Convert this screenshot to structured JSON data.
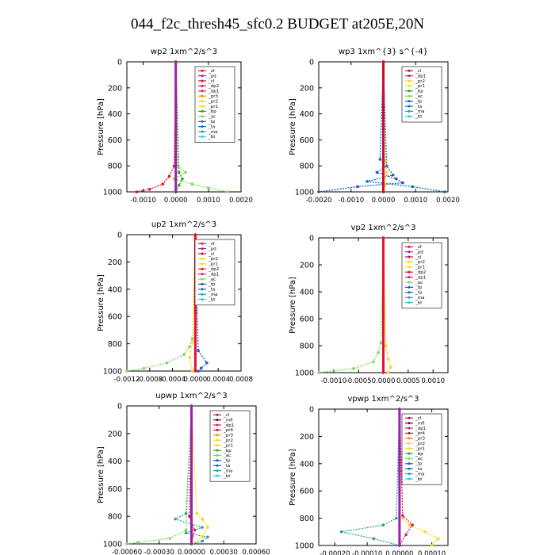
{
  "title": "044_f2c_thresh45_sfc0.2  BUDGET at205E,20N",
  "colors": {
    "sf": "#e8102a",
    "pd": "#9b1fa8",
    "cl": "#c8102e",
    "dp2": "#e8102a",
    "dp1": "#d81b60",
    "pr3": "#ff8c00",
    "pr2": "#ffd21a",
    "pr1": "#e6e600",
    "bp": "#2ca02c",
    "ac": "#7ed957",
    "tp": "#1f4fd8",
    "ta": "#0072b2",
    "ma": "#2aa198",
    "bt": "#22ccee",
    "mfl": "#5b0b2b",
    "pr4": "#b22222"
  },
  "chart_data": [
    {
      "type": "line",
      "title": "wp2  1xm^2/s^3",
      "ylabel": "Pressure  [hPa]",
      "ylim": [
        1000,
        0
      ],
      "xlim": [
        -0.0015,
        0.002
      ],
      "xticks": [
        -0.001,
        0.0,
        0.001,
        0.002
      ],
      "xtick_labels": [
        "-0.0010",
        "0.0000",
        "0.0010",
        "0.0020"
      ],
      "yticks": [
        0,
        200,
        400,
        600,
        800,
        1000
      ],
      "ytick_labels": [
        "0",
        "200",
        "400",
        "600",
        "800",
        "1000"
      ],
      "legend": [
        "_sf",
        "_pd",
        "_cl",
        "_dp2",
        "_dp1",
        "_pr3",
        "_pr2",
        "_pr1",
        "_bp",
        "_ac",
        "_tp",
        "_ta",
        "_ma",
        "_bt"
      ],
      "legend_placement": "top-right",
      "series": [
        {
          "name": "_ac",
          "color": "ac",
          "y": [
            0,
            800,
            850,
            900,
            940,
            970,
            1000
          ],
          "x": [
            0,
            5e-05,
            0.0003,
            -5e-05,
            0.0005,
            0.001,
            0.0016
          ]
        },
        {
          "name": "_dp2",
          "color": "dp2",
          "y": [
            0,
            800,
            880,
            940,
            980,
            1000
          ],
          "x": [
            0,
            -5e-05,
            -0.0002,
            -0.0004,
            -0.0008,
            -0.0012
          ]
        },
        {
          "name": "_bp",
          "color": "bp",
          "y": [
            0,
            850,
            900,
            950,
            1000
          ],
          "x": [
            0,
            0.0001,
            0.0002,
            0.0001,
            0.0
          ]
        },
        {
          "name": "_pd",
          "color": "pd",
          "y": [
            0,
            1000
          ],
          "x": [
            0,
            0
          ]
        }
      ]
    },
    {
      "type": "line",
      "title": "wp3  1xm^{3} s^{-4}",
      "ylabel": "Pressure  [hPa]",
      "ylim": [
        1000,
        0
      ],
      "xlim": [
        -0.002,
        0.002
      ],
      "xticks": [
        -0.002,
        -0.001,
        0.0,
        0.001,
        0.002
      ],
      "xtick_labels": [
        "-0.0020",
        "-0.0010",
        "0.0000",
        "0.0010",
        "0.0020"
      ],
      "yticks": [
        0,
        200,
        400,
        600,
        800,
        1000
      ],
      "ytick_labels": [
        "0",
        "200",
        "400",
        "600",
        "800",
        "1000"
      ],
      "legend": [
        "_cl",
        "_dp1",
        "_pr2",
        "_pr1",
        "_bp",
        "_ac",
        "_tp",
        "_ta",
        "_ma",
        "_bt"
      ],
      "legend_placement": "top-right",
      "series": [
        {
          "name": "_tp",
          "color": "tp",
          "y": [
            0,
            750,
            800,
            850,
            900,
            930,
            960,
            1000
          ],
          "x": [
            0,
            -0.0001,
            0.0001,
            -0.0002,
            0.0004,
            0.0006,
            -0.0008,
            -0.002
          ]
        },
        {
          "name": "_ta",
          "color": "ta",
          "y": [
            0,
            800,
            870,
            920,
            960,
            1000
          ],
          "x": [
            0,
            0.0001,
            0.0003,
            -0.0005,
            0.0009,
            0.0019
          ]
        },
        {
          "name": "_pr2",
          "color": "pr2",
          "y": [
            0,
            760,
            850,
            950,
            1000
          ],
          "x": [
            0,
            5e-05,
            0.0001,
            5e-05,
            0
          ]
        },
        {
          "name": "_cl",
          "color": "cl",
          "y": [
            0,
            1000
          ],
          "x": [
            0,
            0
          ]
        }
      ]
    },
    {
      "type": "line",
      "title": "up2  1xm^2/s^3",
      "ylabel": "Pressure  [hPa]",
      "ylim": [
        1000,
        0
      ],
      "xlim": [
        -0.0012,
        0.0008
      ],
      "xticks": [
        -0.0012,
        -0.0008,
        -0.0004,
        0.0,
        0.0004,
        0.0008
      ],
      "xtick_labels": [
        "-0.0012",
        "-0.0008",
        "-0.0004",
        "0.0000",
        "0.0004",
        "0.0008"
      ],
      "yticks": [
        0,
        200,
        400,
        600,
        800,
        1000
      ],
      "ytick_labels": [
        "0",
        "200",
        "400",
        "600",
        "800",
        "1000"
      ],
      "legend": [
        "_sf",
        "_pd",
        "_cl",
        "_pr2",
        "_pr1",
        "_dp2",
        "_dp1",
        "_ac",
        "_tp",
        "_ta",
        "_ma",
        "_bt"
      ],
      "legend_placement": "top-right",
      "series": [
        {
          "name": "_ac",
          "color": "ac",
          "y": [
            0,
            760,
            820,
            880,
            940,
            980,
            1000
          ],
          "x": [
            0,
            -5e-05,
            -0.0001,
            -0.0002,
            -0.0005,
            -0.0009,
            -0.0012
          ]
        },
        {
          "name": "_tp",
          "color": "tp",
          "y": [
            0,
            850,
            940,
            980,
            1000
          ],
          "x": [
            0,
            5e-05,
            0.0002,
            0.0001,
            5e-05
          ]
        },
        {
          "name": "_pr2",
          "color": "pr2",
          "y": [
            0,
            780,
            900,
            1000
          ],
          "x": [
            0,
            -5e-05,
            -0.0001,
            -5e-05
          ]
        },
        {
          "name": "_sf",
          "color": "sf",
          "y": [
            0,
            1000
          ],
          "x": [
            0,
            0
          ]
        }
      ]
    },
    {
      "type": "line",
      "title": "vp2  1xm^2/s^3",
      "ylabel": "Pressure  [hPa]",
      "ylim": [
        1000,
        0
      ],
      "xlim": [
        -0.0013,
        0.0013
      ],
      "xticks": [
        -0.001,
        -0.0005,
        0.0,
        0.0005,
        0.001
      ],
      "xtick_labels": [
        "-0.0010",
        "-0.0005",
        "0.0000",
        "0.0005",
        "0.0010"
      ],
      "yticks": [
        0,
        200,
        400,
        600,
        800,
        1000
      ],
      "ytick_labels": [
        "0",
        "200",
        "400",
        "600",
        "800",
        "1000"
      ],
      "legend": [
        "_sf",
        "_pd",
        "_cl",
        "_pr2",
        "_pr1",
        "_dp2",
        "_dp1",
        "_ac",
        "_tp",
        "_ta",
        "_ma",
        "_bt"
      ],
      "legend_placement": "top-right",
      "series": [
        {
          "name": "_ac",
          "color": "ac",
          "y": [
            0,
            780,
            850,
            920,
            970,
            1000
          ],
          "x": [
            0,
            -5e-05,
            -0.0001,
            -0.0002,
            -0.0006,
            -0.0013
          ]
        },
        {
          "name": "_pr2",
          "color": "pr2",
          "y": [
            0,
            800,
            900,
            960,
            1000
          ],
          "x": [
            0,
            5e-05,
            0.0001,
            0.00015,
            0.0001
          ]
        },
        {
          "name": "_sf",
          "color": "sf",
          "y": [
            0,
            1000
          ],
          "x": [
            0,
            0
          ]
        }
      ]
    },
    {
      "type": "line",
      "title": "upwp  1xm^2/s^3",
      "ylabel": "Pressure  [hPa]",
      "ylim": [
        1000,
        0
      ],
      "xlim": [
        -0.0006,
        0.0006
      ],
      "xticks": [
        -0.0006,
        -0.0003,
        0.0,
        0.0003,
        0.0006
      ],
      "xtick_labels": [
        "-0.00060",
        "-0.00030",
        "0.00000",
        "0.00030",
        "0.00060"
      ],
      "yticks": [
        0,
        200,
        400,
        600,
        800,
        1000
      ],
      "ytick_labels": [
        "0",
        "200",
        "400",
        "600",
        "800",
        "1000"
      ],
      "legend": [
        "_cl",
        "_mfl",
        "_dp1",
        "_pr4",
        "_pr3",
        "_pr2",
        "_pr1",
        "_bp",
        "_ac",
        "_tp",
        "_ta",
        "_ma",
        "_bt"
      ],
      "legend_placement": "top-right",
      "series": [
        {
          "name": "_tp",
          "color": "ma",
          "y": [
            0,
            780,
            820,
            880,
            920,
            950,
            980,
            1000
          ],
          "x": [
            0,
            -5e-05,
            -0.00015,
            0.0001,
            -5e-05,
            0.00015,
            0.0001,
            0.0
          ]
        },
        {
          "name": "_pr2",
          "color": "pr2",
          "y": [
            0,
            780,
            820,
            880,
            950,
            1000
          ],
          "x": [
            0,
            5e-05,
            0.0001,
            0.00015,
            0.0001,
            0.0
          ]
        },
        {
          "name": "_ac",
          "color": "ac",
          "y": [
            0,
            900,
            960,
            990,
            1000
          ],
          "x": [
            0,
            -5e-05,
            -0.0002,
            -0.0005,
            -0.0006
          ]
        },
        {
          "name": "_dp1",
          "color": "dp1",
          "y": [
            0,
            800,
            900,
            1000
          ],
          "x": [
            0,
            -2e-05,
            3e-05,
            0
          ]
        },
        {
          "name": "_cl",
          "color": "pd",
          "y": [
            0,
            1000
          ],
          "x": [
            0,
            0
          ]
        }
      ]
    },
    {
      "type": "line",
      "title": "vpwp  1xm^2/s^3",
      "ylabel": "Pressure  [hPa]",
      "ylim": [
        1000,
        0
      ],
      "xlim": [
        -0.00025,
        0.00015
      ],
      "xticks": [
        -0.0002,
        -0.0001,
        0.0,
        0.0001
      ],
      "xtick_labels": [
        "-0.00020",
        "-0.00010",
        "0.00000",
        "0.00010"
      ],
      "yticks": [
        0,
        200,
        400,
        600,
        800,
        1000
      ],
      "ytick_labels": [
        "0",
        "200",
        "400",
        "600",
        "800",
        "1000"
      ],
      "legend": [
        "_cl",
        "_mfl",
        "_dp1",
        "_pr4",
        "_pr3",
        "_pr2",
        "_pr1",
        "_bp",
        "_ac",
        "_tp",
        "_ta",
        "_ma",
        "_bt"
      ],
      "legend_placement": "top-right",
      "series": [
        {
          "name": "_tp",
          "color": "ma",
          "y": [
            0,
            800,
            850,
            900,
            950,
            1000
          ],
          "x": [
            0,
            -1e-05,
            -5e-05,
            -0.00018,
            -8e-05,
            0.0
          ]
        },
        {
          "name": "_pr2",
          "color": "pr2",
          "y": [
            0,
            800,
            850,
            900,
            950,
            1000
          ],
          "x": [
            0,
            1e-05,
            3e-05,
            8e-05,
            0.00012,
            0.0001
          ]
        },
        {
          "name": "_dp1",
          "color": "dp1",
          "y": [
            0,
            780,
            850,
            920,
            1000
          ],
          "x": [
            0,
            1e-05,
            4e-05,
            2e-05,
            0
          ]
        },
        {
          "name": "_cl",
          "color": "pd",
          "y": [
            0,
            1000
          ],
          "x": [
            0,
            0
          ]
        }
      ]
    }
  ]
}
